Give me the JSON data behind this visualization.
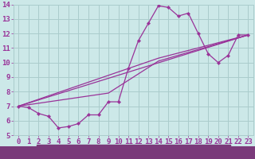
{
  "bg_color": "#cce8e8",
  "plot_bg_color": "#cce8e8",
  "xlabel_bg_color": "#7a3a7a",
  "grid_color": "#aacccc",
  "line_color": "#993399",
  "marker_color": "#993399",
  "xlim": [
    -0.5,
    23.5
  ],
  "ylim": [
    5,
    14
  ],
  "yticks": [
    5,
    6,
    7,
    8,
    9,
    10,
    11,
    12,
    13,
    14
  ],
  "xticks": [
    0,
    1,
    2,
    3,
    4,
    5,
    6,
    7,
    8,
    9,
    10,
    11,
    12,
    13,
    14,
    15,
    16,
    17,
    18,
    19,
    20,
    21,
    22,
    23
  ],
  "line1_x": [
    0,
    1,
    2,
    3,
    4,
    5,
    6,
    7,
    8,
    9,
    10,
    11,
    12,
    13,
    14,
    15,
    16,
    17,
    18,
    19,
    20,
    21,
    22,
    23
  ],
  "line1_y": [
    7.0,
    6.9,
    6.5,
    6.3,
    5.5,
    5.6,
    5.8,
    6.4,
    6.4,
    7.3,
    7.3,
    9.6,
    11.5,
    12.7,
    13.9,
    13.8,
    13.2,
    13.4,
    12.0,
    10.6,
    10.0,
    10.5,
    11.9,
    11.9
  ],
  "line2_x": [
    0,
    23
  ],
  "line2_y": [
    7.0,
    11.9
  ],
  "line3_x": [
    0,
    9,
    14,
    23
  ],
  "line3_y": [
    7.0,
    7.9,
    10.1,
    11.9
  ],
  "line4_x": [
    0,
    14,
    23
  ],
  "line4_y": [
    7.0,
    10.3,
    11.9
  ],
  "font_color": "#993399",
  "xlabel_font_color": "#ffffff",
  "tick_fontsize": 6.5,
  "label_fontsize": 7.5
}
